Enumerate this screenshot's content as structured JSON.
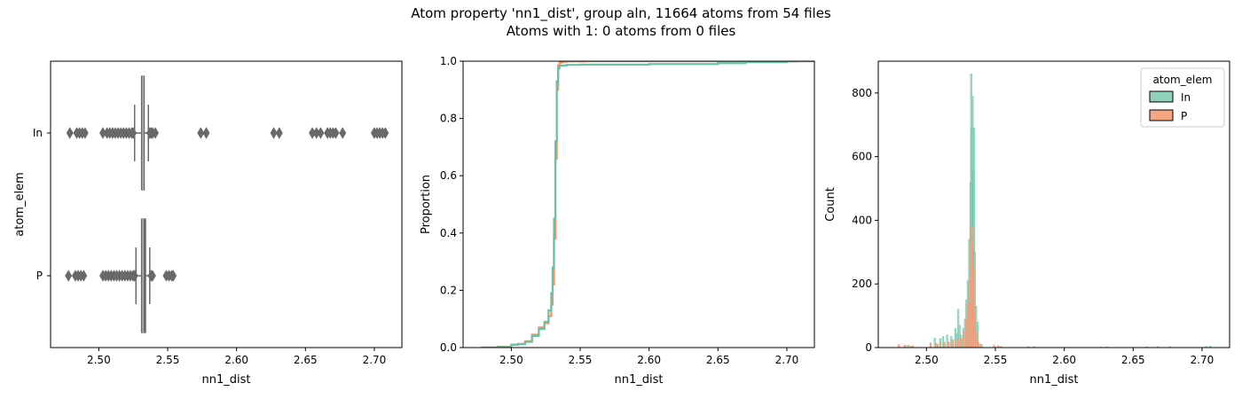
{
  "figure": {
    "title_line1": "Atom property 'nn1_dist', group aln, 11664 atoms from 54 files",
    "title_line2": "Atoms with 1: 0 atoms from 0 files"
  },
  "colors": {
    "In": "#8fd1bb",
    "P": "#f4a582",
    "In_line": "#66c2a5",
    "P_line": "#fc8d62",
    "box": "#696969"
  },
  "chart_data": [
    {
      "type": "box",
      "xlabel": "nn1_dist",
      "ylabel": "atom_elem",
      "xlim": [
        2.465,
        2.72
      ],
      "xticks": [
        "2.50",
        "2.55",
        "2.60",
        "2.65",
        "2.70"
      ],
      "categories": [
        "In",
        "P"
      ],
      "series": [
        {
          "name": "In",
          "q1": 2.531,
          "median": 2.532,
          "q3": 2.533,
          "whisker_low": 2.526,
          "whisker_high": 2.536,
          "outliers": [
            2.479,
            2.484,
            2.486,
            2.488,
            2.49,
            2.503,
            2.506,
            2.508,
            2.51,
            2.512,
            2.514,
            2.516,
            2.518,
            2.52,
            2.522,
            2.524,
            2.525,
            2.537,
            2.538,
            2.539,
            2.541,
            2.574,
            2.578,
            2.627,
            2.631,
            2.655,
            2.658,
            2.661,
            2.666,
            2.668,
            2.67,
            2.672,
            2.677,
            2.7,
            2.702,
            2.704,
            2.706,
            2.708
          ]
        },
        {
          "name": "P",
          "q1": 2.531,
          "median": 2.532,
          "q3": 2.534,
          "whisker_low": 2.527,
          "whisker_high": 2.537,
          "outliers": [
            2.478,
            2.483,
            2.485,
            2.487,
            2.489,
            2.503,
            2.505,
            2.507,
            2.509,
            2.511,
            2.513,
            2.515,
            2.517,
            2.519,
            2.521,
            2.523,
            2.525,
            2.526,
            2.538,
            2.539,
            2.549,
            2.551,
            2.553,
            2.554
          ]
        }
      ]
    },
    {
      "type": "line",
      "xlabel": "nn1_dist",
      "ylabel": "Proportion",
      "xlim": [
        2.465,
        2.72
      ],
      "ylim": [
        0,
        1
      ],
      "xticks": [
        "2.50",
        "2.55",
        "2.60",
        "2.65",
        "2.70"
      ],
      "yticks": [
        "0.0",
        "0.2",
        "0.4",
        "0.6",
        "0.8",
        "1.0"
      ],
      "series": [
        {
          "name": "In",
          "x": [
            2.478,
            2.49,
            2.5,
            2.505,
            2.51,
            2.515,
            2.52,
            2.524,
            2.527,
            2.529,
            2.53,
            2.531,
            2.532,
            2.533,
            2.534,
            2.535,
            2.54,
            2.55,
            2.6,
            2.65,
            2.67,
            2.7,
            2.708
          ],
          "y": [
            0.0,
            0.002,
            0.01,
            0.012,
            0.02,
            0.04,
            0.065,
            0.09,
            0.13,
            0.19,
            0.28,
            0.45,
            0.72,
            0.93,
            0.975,
            0.985,
            0.987,
            0.988,
            0.99,
            0.993,
            0.997,
            0.999,
            1.0
          ]
        },
        {
          "name": "P",
          "x": [
            2.478,
            2.49,
            2.5,
            2.505,
            2.51,
            2.515,
            2.52,
            2.524,
            2.527,
            2.529,
            2.53,
            2.531,
            2.532,
            2.533,
            2.534,
            2.535,
            2.537,
            2.54,
            2.554,
            2.56
          ],
          "y": [
            0.0,
            0.003,
            0.01,
            0.013,
            0.022,
            0.045,
            0.07,
            0.085,
            0.11,
            0.15,
            0.22,
            0.38,
            0.66,
            0.9,
            0.985,
            0.995,
            0.998,
            0.999,
            1.0,
            1.0
          ]
        }
      ]
    },
    {
      "type": "histogram",
      "xlabel": "nn1_dist",
      "ylabel": "Count",
      "xlim": [
        2.465,
        2.72
      ],
      "ylim": [
        0,
        900
      ],
      "xticks": [
        "2.50",
        "2.55",
        "2.60",
        "2.65",
        "2.70"
      ],
      "yticks": [
        "0",
        "200",
        "400",
        "600",
        "800"
      ],
      "legend": {
        "title": "atom_elem",
        "placement": "upper-right",
        "entries": [
          "In",
          "P"
        ]
      },
      "series": [
        {
          "name": "In",
          "x": [
            2.48,
            2.485,
            2.489,
            2.503,
            2.506,
            2.508,
            2.51,
            2.512,
            2.513,
            2.515,
            2.516,
            2.518,
            2.519,
            2.521,
            2.522,
            2.523,
            2.524,
            2.525,
            2.526,
            2.527,
            2.528,
            2.529,
            2.53,
            2.531,
            2.532,
            2.5325,
            2.533,
            2.5335,
            2.534,
            2.5345,
            2.535,
            2.536,
            2.537,
            2.538,
            2.54,
            2.574,
            2.578,
            2.627,
            2.631,
            2.66,
            2.668,
            2.677,
            2.703,
            2.706
          ],
          "y": [
            5,
            6,
            4,
            15,
            30,
            10,
            28,
            35,
            12,
            40,
            18,
            35,
            25,
            60,
            45,
            120,
            70,
            40,
            25,
            60,
            90,
            150,
            210,
            340,
            520,
            860,
            690,
            790,
            560,
            690,
            300,
            130,
            80,
            15,
            10,
            3,
            3,
            2,
            2,
            2,
            3,
            3,
            4,
            5
          ]
        },
        {
          "name": "P",
          "x": [
            2.48,
            2.484,
            2.487,
            2.49,
            2.503,
            2.507,
            2.51,
            2.513,
            2.516,
            2.519,
            2.521,
            2.523,
            2.525,
            2.527,
            2.529,
            2.53,
            2.531,
            2.532,
            2.533,
            2.534,
            2.535,
            2.536,
            2.537,
            2.539,
            2.549,
            2.552,
            2.554
          ],
          "y": [
            10,
            8,
            8,
            6,
            12,
            14,
            15,
            18,
            16,
            20,
            25,
            30,
            30,
            50,
            90,
            140,
            210,
            330,
            380,
            250,
            120,
            50,
            25,
            10,
            8,
            6,
            4
          ]
        }
      ]
    }
  ]
}
